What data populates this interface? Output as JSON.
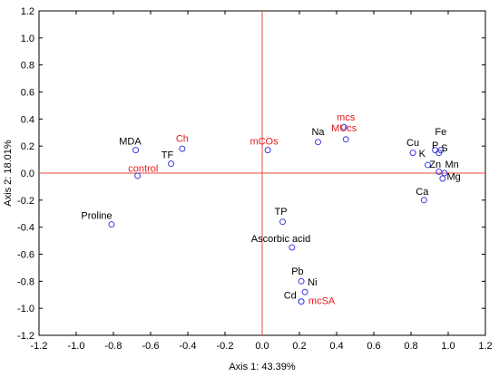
{
  "chart_data": {
    "type": "scatter",
    "xlabel": "Axis 1: 43.39%",
    "ylabel": "Axis 2: 18.01%",
    "xlim": [
      -1.2,
      1.2
    ],
    "ylim": [
      -1.2,
      1.2
    ],
    "xticks": [
      "-1.2",
      "-1.0",
      "-0.8",
      "-0.6",
      "-0.4",
      "-0.2",
      "0.0",
      "0.2",
      "0.4",
      "0.6",
      "0.8",
      "1.0",
      "1.2"
    ],
    "yticks": [
      "1.2",
      "1.0",
      "0.8",
      "0.6",
      "0.4",
      "0.2",
      "0.0",
      "-0.2",
      "-0.4",
      "-0.6",
      "-0.8",
      "-1.0",
      "-1.2"
    ],
    "reference_lines": {
      "x": 0,
      "y": 0,
      "color": "#e8483c"
    },
    "marker_color": "#3c3ce0",
    "label_colors": {
      "variable": "#000000",
      "treatment": "#e31a1c"
    },
    "points": [
      {
        "label": "MDA",
        "x": -0.68,
        "y": 0.17,
        "group": "variable",
        "lx": -0.71,
        "ly": 0.21
      },
      {
        "label": "Ch",
        "x": -0.43,
        "y": 0.18,
        "group": "treatment",
        "lx": -0.43,
        "ly": 0.23
      },
      {
        "label": "TF",
        "x": -0.49,
        "y": 0.07,
        "group": "variable",
        "lx": -0.51,
        "ly": 0.11
      },
      {
        "label": "control",
        "x": -0.67,
        "y": -0.02,
        "group": "treatment",
        "lx": -0.64,
        "ly": 0.01
      },
      {
        "label": "mCOs",
        "x": 0.03,
        "y": 0.17,
        "group": "treatment",
        "lx": 0.01,
        "ly": 0.21
      },
      {
        "label": "Na",
        "x": 0.3,
        "y": 0.23,
        "group": "variable",
        "lx": 0.3,
        "ly": 0.28
      },
      {
        "label": "mcs",
        "x": 0.44,
        "y": 0.34,
        "group": "treatment",
        "lx": 0.45,
        "ly": 0.39
      },
      {
        "label": "MUcs",
        "x": 0.45,
        "y": 0.25,
        "group": "treatment",
        "lx": 0.44,
        "ly": 0.31
      },
      {
        "label": "Cu",
        "x": 0.81,
        "y": 0.15,
        "group": "variable",
        "lx": 0.81,
        "ly": 0.2
      },
      {
        "label": "Fe",
        "x": 0.96,
        "y": 0.17,
        "group": "variable",
        "lx": 0.96,
        "ly": 0.28
      },
      {
        "label": "P",
        "x": 0.93,
        "y": 0.17,
        "group": "variable",
        "lx": 0.93,
        "ly": 0.18
      },
      {
        "label": "S",
        "x": 0.95,
        "y": 0.15,
        "group": "variable",
        "lx": 0.98,
        "ly": 0.16
      },
      {
        "label": "K",
        "x": 0.89,
        "y": 0.06,
        "group": "variable",
        "lx": 0.86,
        "ly": 0.12
      },
      {
        "label": "Zn",
        "x": 0.95,
        "y": 0.01,
        "group": "variable",
        "lx": 0.93,
        "ly": 0.04
      },
      {
        "label": "Mn",
        "x": 0.98,
        "y": 0.0,
        "group": "variable",
        "lx": 1.02,
        "ly": 0.04
      },
      {
        "label": "Mg",
        "x": 0.97,
        "y": -0.04,
        "group": "variable",
        "lx": 1.03,
        "ly": -0.05
      },
      {
        "label": "Ca",
        "x": 0.87,
        "y": -0.2,
        "group": "variable",
        "lx": 0.86,
        "ly": -0.16
      },
      {
        "label": "Proline",
        "x": -0.81,
        "y": -0.38,
        "group": "variable",
        "lx": -0.89,
        "ly": -0.34
      },
      {
        "label": "TP",
        "x": 0.11,
        "y": -0.36,
        "group": "variable",
        "lx": 0.1,
        "ly": -0.31
      },
      {
        "label": "Ascorbic acid",
        "x": 0.16,
        "y": -0.55,
        "group": "variable",
        "lx": 0.1,
        "ly": -0.51
      },
      {
        "label": "Pb",
        "x": 0.21,
        "y": -0.8,
        "group": "variable",
        "lx": 0.19,
        "ly": -0.75
      },
      {
        "label": "Ni",
        "x": 0.23,
        "y": -0.88,
        "group": "variable",
        "lx": 0.27,
        "ly": -0.83
      },
      {
        "label": "Cd",
        "x": 0.21,
        "y": -0.95,
        "group": "variable",
        "lx": 0.15,
        "ly": -0.93
      },
      {
        "label": "mcSA",
        "x": 0.21,
        "y": -0.95,
        "group": "treatment",
        "lx": 0.32,
        "ly": -0.97
      }
    ]
  }
}
